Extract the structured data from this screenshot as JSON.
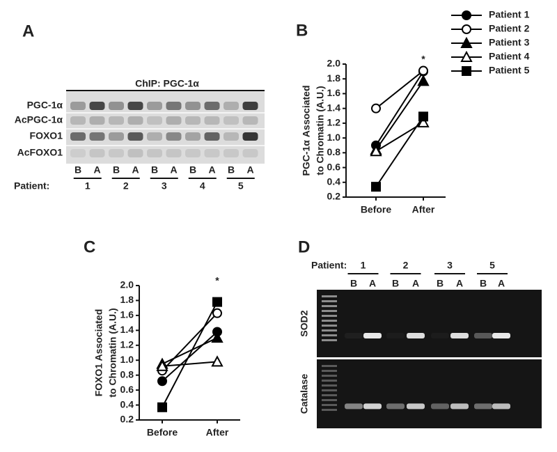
{
  "chart_data": [
    {
      "type": "line",
      "label": "B",
      "y_label": [
        "PGC-1α Associated",
        "to Chromatin (A.U.)"
      ],
      "categories": [
        "Before",
        "After"
      ],
      "annotation": "*",
      "ylim": [
        0.2,
        2.0
      ],
      "yticks": [
        0.2,
        0.4,
        0.6,
        0.8,
        {
          "value": 1.0,
          "label": "1.0"
        },
        1.2,
        1.4,
        1.6,
        1.8,
        {
          "value": 2.0,
          "label": "2.0"
        }
      ],
      "series": [
        {
          "name": "Patient 1",
          "color": "#000000",
          "marker": "circle",
          "filled": true,
          "values": [
            0.9,
            1.9
          ]
        },
        {
          "name": "Patient 2",
          "color": "#000000",
          "marker": "circle",
          "filled": false,
          "values": [
            1.4,
            1.91
          ]
        },
        {
          "name": "Patient 3",
          "color": "#000000",
          "marker": "triangle",
          "filled": true,
          "values": [
            0.84,
            1.77
          ]
        },
        {
          "name": "Patient 4",
          "color": "#000000",
          "marker": "triangle",
          "filled": false,
          "values": [
            0.82,
            1.21
          ]
        },
        {
          "name": "Patient 5",
          "color": "#000000",
          "marker": "square",
          "filled": true,
          "values": [
            0.34,
            1.29
          ]
        }
      ]
    },
    {
      "type": "line",
      "label": "C",
      "y_label": [
        "FOXO1 Associated",
        "to Chromatin (A.U.)"
      ],
      "categories": [
        "Before",
        "After"
      ],
      "annotation": "*",
      "ylim": [
        0.2,
        2.0
      ],
      "yticks": [
        0.2,
        0.4,
        0.6,
        0.8,
        {
          "value": 1.0,
          "label": "1.0"
        },
        1.2,
        1.4,
        1.6,
        1.8,
        {
          "value": 2.0,
          "label": "2.0"
        }
      ],
      "series": [
        {
          "color": "#000000",
          "marker": "circle",
          "filled": true,
          "values": [
            0.72,
            1.38
          ]
        },
        {
          "color": "#000000",
          "marker": "circle",
          "filled": false,
          "values": [
            0.86,
            1.63
          ]
        },
        {
          "color": "#000000",
          "marker": "triangle",
          "filled": true,
          "values": [
            0.95,
            1.3
          ]
        },
        {
          "color": "#000000",
          "marker": "triangle",
          "filled": false,
          "values": [
            0.92,
            0.98
          ]
        },
        {
          "color": "#000000",
          "marker": "square",
          "filled": true,
          "values": [
            0.37,
            1.78
          ]
        }
      ]
    }
  ],
  "blot": {
    "label": "A",
    "header": "ChIP: PGC-1α",
    "rows": [
      "PGC-1α",
      "AcPGC-1α",
      "FOXO1",
      "AcFOXO1"
    ],
    "lanes": [
      "B",
      "A",
      "B",
      "A",
      "B",
      "A",
      "B",
      "A",
      "B",
      "A"
    ],
    "patient_label": "Patient:",
    "patients": [
      "1",
      "2",
      "3",
      "4",
      "5"
    ]
  },
  "gel": {
    "label": "D",
    "patient_label": "Patient:",
    "patients": [
      "1",
      "2",
      "3",
      "5"
    ],
    "lanes": [
      "B",
      "A",
      "B",
      "A",
      "B",
      "A",
      "B",
      "A"
    ],
    "rows": [
      "SOD2",
      "Catalase"
    ]
  }
}
